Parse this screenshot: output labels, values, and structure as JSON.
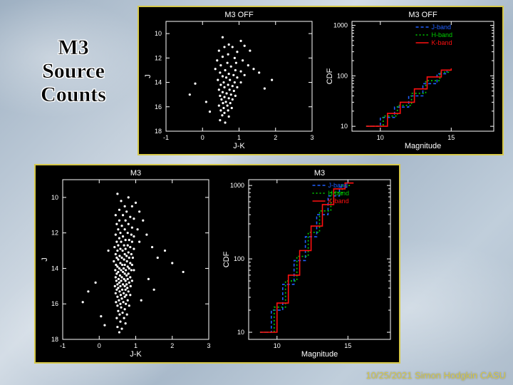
{
  "title_lines": [
    "M3",
    "Source",
    "Counts"
  ],
  "title_fontsize": 30,
  "footer": "10/25/2021 Simon Hodgkin CASU",
  "footer_color": "#d6c84a",
  "panel_border_color": "#d6c84a",
  "bg_color": "#000000",
  "axis_color": "#ffffff",
  "point_color": "#ffffff",
  "legend": {
    "items": [
      {
        "label": "J-band",
        "color": "#1f5fff",
        "dash": "4 3"
      },
      {
        "label": "H-band",
        "color": "#00d000",
        "dash": "2 3"
      },
      {
        "label": "K-band",
        "color": "#ff1010",
        "dash": ""
      }
    ],
    "fontsize": 9
  },
  "scatter_template": {
    "xlabel": "J-K",
    "ylabel": "J",
    "xlim": [
      -1,
      3
    ],
    "xticks": [
      -1,
      0,
      1,
      2,
      3
    ],
    "ylim": [
      18,
      9
    ],
    "yticks": [
      18,
      16,
      14,
      12,
      10
    ],
    "tick_fontsize": 9,
    "label_fontsize": 11,
    "title_fontsize": 11,
    "marker_size": 1.6
  },
  "cdf_template": {
    "xlabel": "Magnitude",
    "ylabel": "CDF",
    "xlim": [
      8,
      18
    ],
    "xticks": [
      10,
      15
    ],
    "yscale": "log",
    "ylim": [
      8,
      1200
    ],
    "yticks": [
      10,
      100,
      1000
    ],
    "ytick_labels": [
      "10",
      "100",
      "1000"
    ],
    "tick_fontsize": 9,
    "label_fontsize": 11,
    "title_fontsize": 11
  },
  "panels": {
    "top_scatter": {
      "title": "M3 OFF",
      "points": [
        [
          0.55,
          10.3
        ],
        [
          1.05,
          10.6
        ],
        [
          0.72,
          10.9
        ],
        [
          0.6,
          11.1
        ],
        [
          0.82,
          11.1
        ],
        [
          1.15,
          11.0
        ],
        [
          0.45,
          11.4
        ],
        [
          0.95,
          11.5
        ],
        [
          0.7,
          11.7
        ],
        [
          1.3,
          11.4
        ],
        [
          0.55,
          11.9
        ],
        [
          0.88,
          12.0
        ],
        [
          0.4,
          12.2
        ],
        [
          1.1,
          12.2
        ],
        [
          0.68,
          12.4
        ],
        [
          0.92,
          12.4
        ],
        [
          0.5,
          12.6
        ],
        [
          0.78,
          12.7
        ],
        [
          1.25,
          12.6
        ],
        [
          0.35,
          12.9
        ],
        [
          0.62,
          13.0
        ],
        [
          0.9,
          13.0
        ],
        [
          1.05,
          13.1
        ],
        [
          0.48,
          13.2
        ],
        [
          0.72,
          13.3
        ],
        [
          0.85,
          13.4
        ],
        [
          0.55,
          13.5
        ],
        [
          1.15,
          13.4
        ],
        [
          0.65,
          13.6
        ],
        [
          0.95,
          13.6
        ],
        [
          0.42,
          13.8
        ],
        [
          0.75,
          13.8
        ],
        [
          0.58,
          14.0
        ],
        [
          0.88,
          14.0
        ],
        [
          1.05,
          14.0
        ],
        [
          0.5,
          14.2
        ],
        [
          0.7,
          14.2
        ],
        [
          0.82,
          14.3
        ],
        [
          0.6,
          14.4
        ],
        [
          0.95,
          14.4
        ],
        [
          0.45,
          14.6
        ],
        [
          0.74,
          14.6
        ],
        [
          0.86,
          14.7
        ],
        [
          0.55,
          14.8
        ],
        [
          0.66,
          14.9
        ],
        [
          0.78,
          15.0
        ],
        [
          0.48,
          15.1
        ],
        [
          0.9,
          15.1
        ],
        [
          0.6,
          15.2
        ],
        [
          0.72,
          15.3
        ],
        [
          0.52,
          15.4
        ],
        [
          0.82,
          15.4
        ],
        [
          0.64,
          15.6
        ],
        [
          0.56,
          15.7
        ],
        [
          0.76,
          15.7
        ],
        [
          0.45,
          15.9
        ],
        [
          0.68,
          15.9
        ],
        [
          0.58,
          16.1
        ],
        [
          0.8,
          16.1
        ],
        [
          0.5,
          16.3
        ],
        [
          0.7,
          16.3
        ],
        [
          0.6,
          16.5
        ],
        [
          0.54,
          16.7
        ],
        [
          0.72,
          16.8
        ],
        [
          0.48,
          17.1
        ],
        [
          0.62,
          17.3
        ],
        [
          1.4,
          12.9
        ],
        [
          1.55,
          13.2
        ],
        [
          -0.2,
          14.1
        ],
        [
          -0.35,
          15.0
        ],
        [
          1.7,
          14.5
        ],
        [
          1.9,
          13.8
        ],
        [
          0.1,
          15.6
        ],
        [
          0.2,
          16.4
        ]
      ]
    },
    "top_cdf": {
      "title": "M3 OFF",
      "series": {
        "J": [
          [
            9.0,
            10
          ],
          [
            10.0,
            10
          ],
          [
            10.0,
            15
          ],
          [
            11.0,
            15
          ],
          [
            11.0,
            24
          ],
          [
            12.0,
            24
          ],
          [
            12.0,
            40
          ],
          [
            13.0,
            40
          ],
          [
            13.0,
            70
          ],
          [
            14.0,
            70
          ],
          [
            14.0,
            110
          ],
          [
            14.7,
            110
          ],
          [
            14.7,
            125
          ]
        ],
        "H": [
          [
            9.0,
            10
          ],
          [
            10.2,
            10
          ],
          [
            10.2,
            16
          ],
          [
            11.2,
            16
          ],
          [
            11.2,
            26
          ],
          [
            12.2,
            26
          ],
          [
            12.2,
            45
          ],
          [
            13.2,
            45
          ],
          [
            13.2,
            80
          ],
          [
            14.2,
            80
          ],
          [
            14.2,
            118
          ],
          [
            14.9,
            118
          ],
          [
            14.9,
            130
          ]
        ],
        "K": [
          [
            9.0,
            10
          ],
          [
            10.5,
            10
          ],
          [
            10.5,
            18
          ],
          [
            11.4,
            18
          ],
          [
            11.4,
            30
          ],
          [
            12.4,
            30
          ],
          [
            12.4,
            55
          ],
          [
            13.3,
            55
          ],
          [
            13.3,
            95
          ],
          [
            14.3,
            95
          ],
          [
            14.3,
            130
          ],
          [
            15.0,
            130
          ],
          [
            15.0,
            140
          ]
        ]
      }
    },
    "bot_scatter": {
      "title": "M3",
      "points": [
        [
          0.5,
          9.8
        ],
        [
          0.8,
          10.0
        ],
        [
          0.6,
          10.2
        ],
        [
          1.0,
          10.3
        ],
        [
          0.7,
          10.5
        ],
        [
          0.9,
          10.5
        ],
        [
          0.55,
          10.7
        ],
        [
          0.75,
          10.8
        ],
        [
          1.1,
          10.8
        ],
        [
          0.45,
          11.0
        ],
        [
          0.65,
          11.0
        ],
        [
          0.85,
          11.1
        ],
        [
          0.95,
          11.2
        ],
        [
          0.55,
          11.3
        ],
        [
          0.72,
          11.3
        ],
        [
          1.2,
          11.3
        ],
        [
          0.48,
          11.5
        ],
        [
          0.8,
          11.5
        ],
        [
          0.62,
          11.6
        ],
        [
          0.9,
          11.7
        ],
        [
          0.52,
          11.8
        ],
        [
          0.7,
          11.8
        ],
        [
          1.05,
          11.8
        ],
        [
          0.58,
          12.0
        ],
        [
          0.78,
          12.0
        ],
        [
          0.45,
          12.1
        ],
        [
          0.88,
          12.1
        ],
        [
          0.65,
          12.2
        ],
        [
          0.95,
          12.2
        ],
        [
          0.55,
          12.3
        ],
        [
          0.72,
          12.4
        ],
        [
          0.82,
          12.4
        ],
        [
          0.48,
          12.5
        ],
        [
          0.6,
          12.5
        ],
        [
          0.9,
          12.5
        ],
        [
          1.1,
          12.5
        ],
        [
          0.52,
          12.7
        ],
        [
          0.68,
          12.7
        ],
        [
          0.78,
          12.7
        ],
        [
          0.42,
          12.8
        ],
        [
          0.85,
          12.8
        ],
        [
          0.58,
          12.9
        ],
        [
          0.72,
          12.9
        ],
        [
          0.95,
          12.9
        ],
        [
          0.5,
          13.0
        ],
        [
          0.64,
          13.0
        ],
        [
          0.8,
          13.1
        ],
        [
          0.45,
          13.2
        ],
        [
          0.7,
          13.2
        ],
        [
          0.88,
          13.2
        ],
        [
          0.56,
          13.3
        ],
        [
          0.75,
          13.3
        ],
        [
          0.48,
          13.4
        ],
        [
          0.62,
          13.4
        ],
        [
          0.82,
          13.4
        ],
        [
          0.92,
          13.4
        ],
        [
          0.52,
          13.5
        ],
        [
          0.68,
          13.5
        ],
        [
          0.4,
          13.6
        ],
        [
          0.76,
          13.6
        ],
        [
          0.58,
          13.7
        ],
        [
          0.85,
          13.7
        ],
        [
          0.46,
          13.8
        ],
        [
          0.7,
          13.8
        ],
        [
          0.63,
          13.8
        ],
        [
          0.9,
          13.8
        ],
        [
          0.5,
          13.9
        ],
        [
          0.78,
          13.9
        ],
        [
          0.55,
          14.0
        ],
        [
          0.67,
          14.0
        ],
        [
          0.82,
          14.0
        ],
        [
          0.44,
          14.1
        ],
        [
          0.6,
          14.1
        ],
        [
          0.73,
          14.1
        ],
        [
          0.88,
          14.1
        ],
        [
          0.95,
          14.1
        ],
        [
          0.52,
          14.2
        ],
        [
          0.65,
          14.2
        ],
        [
          0.48,
          14.3
        ],
        [
          0.7,
          14.3
        ],
        [
          0.8,
          14.3
        ],
        [
          0.57,
          14.4
        ],
        [
          0.75,
          14.4
        ],
        [
          0.45,
          14.5
        ],
        [
          0.62,
          14.5
        ],
        [
          0.85,
          14.5
        ],
        [
          0.53,
          14.6
        ],
        [
          0.68,
          14.6
        ],
        [
          0.78,
          14.6
        ],
        [
          0.47,
          14.7
        ],
        [
          0.6,
          14.7
        ],
        [
          0.72,
          14.7
        ],
        [
          0.9,
          14.7
        ],
        [
          0.55,
          14.8
        ],
        [
          0.82,
          14.8
        ],
        [
          0.5,
          14.9
        ],
        [
          0.65,
          14.9
        ],
        [
          0.75,
          14.9
        ],
        [
          0.43,
          15.0
        ],
        [
          0.58,
          15.0
        ],
        [
          0.7,
          15.0
        ],
        [
          0.86,
          15.0
        ],
        [
          0.52,
          15.1
        ],
        [
          0.77,
          15.1
        ],
        [
          0.48,
          15.2
        ],
        [
          0.63,
          15.2
        ],
        [
          0.72,
          15.2
        ],
        [
          0.56,
          15.3
        ],
        [
          0.8,
          15.3
        ],
        [
          0.45,
          15.4
        ],
        [
          0.67,
          15.4
        ],
        [
          0.59,
          15.5
        ],
        [
          0.74,
          15.5
        ],
        [
          0.85,
          15.5
        ],
        [
          0.5,
          15.6
        ],
        [
          0.7,
          15.6
        ],
        [
          0.62,
          15.7
        ],
        [
          0.54,
          15.8
        ],
        [
          0.78,
          15.8
        ],
        [
          0.46,
          15.9
        ],
        [
          0.66,
          15.9
        ],
        [
          0.58,
          16.0
        ],
        [
          0.73,
          16.0
        ],
        [
          0.5,
          16.1
        ],
        [
          0.82,
          16.1
        ],
        [
          0.6,
          16.2
        ],
        [
          0.7,
          16.3
        ],
        [
          0.52,
          16.4
        ],
        [
          0.64,
          16.5
        ],
        [
          0.56,
          16.6
        ],
        [
          0.76,
          16.6
        ],
        [
          0.48,
          16.8
        ],
        [
          0.68,
          16.8
        ],
        [
          0.58,
          17.0
        ],
        [
          0.72,
          17.1
        ],
        [
          0.5,
          17.3
        ],
        [
          0.62,
          17.4
        ],
        [
          0.55,
          17.6
        ],
        [
          1.3,
          12.1
        ],
        [
          1.45,
          12.8
        ],
        [
          1.6,
          13.4
        ],
        [
          1.8,
          13.0
        ],
        [
          2.0,
          13.7
        ],
        [
          2.3,
          14.2
        ],
        [
          -0.1,
          14.8
        ],
        [
          -0.3,
          15.3
        ],
        [
          -0.45,
          15.9
        ],
        [
          0.05,
          16.7
        ],
        [
          0.15,
          17.2
        ],
        [
          0.25,
          13.0
        ],
        [
          1.35,
          14.6
        ],
        [
          1.5,
          15.2
        ],
        [
          1.15,
          15.8
        ]
      ]
    },
    "bot_cdf": {
      "title": "M3",
      "series": {
        "J": [
          [
            8.8,
            10
          ],
          [
            9.6,
            10
          ],
          [
            9.6,
            20
          ],
          [
            10.4,
            20
          ],
          [
            10.4,
            45
          ],
          [
            11.2,
            45
          ],
          [
            11.2,
            95
          ],
          [
            12.0,
            95
          ],
          [
            12.0,
            200
          ],
          [
            12.8,
            200
          ],
          [
            12.8,
            400
          ],
          [
            13.6,
            400
          ],
          [
            13.6,
            720
          ],
          [
            14.4,
            720
          ],
          [
            14.4,
            950
          ],
          [
            15.0,
            950
          ]
        ],
        "H": [
          [
            8.8,
            10
          ],
          [
            9.8,
            10
          ],
          [
            9.8,
            22
          ],
          [
            10.6,
            22
          ],
          [
            10.6,
            50
          ],
          [
            11.4,
            50
          ],
          [
            11.4,
            108
          ],
          [
            12.2,
            108
          ],
          [
            12.2,
            230
          ],
          [
            13.0,
            230
          ],
          [
            13.0,
            450
          ],
          [
            13.8,
            450
          ],
          [
            13.8,
            800
          ],
          [
            14.6,
            800
          ],
          [
            14.6,
            1000
          ],
          [
            15.2,
            1000
          ]
        ],
        "K": [
          [
            8.8,
            10
          ],
          [
            10.0,
            10
          ],
          [
            10.0,
            25
          ],
          [
            10.8,
            25
          ],
          [
            10.8,
            60
          ],
          [
            11.6,
            60
          ],
          [
            11.6,
            130
          ],
          [
            12.4,
            130
          ],
          [
            12.4,
            280
          ],
          [
            13.2,
            280
          ],
          [
            13.2,
            550
          ],
          [
            14.0,
            550
          ],
          [
            14.0,
            900
          ],
          [
            14.8,
            900
          ],
          [
            14.8,
            1080
          ],
          [
            15.4,
            1080
          ]
        ]
      }
    }
  }
}
